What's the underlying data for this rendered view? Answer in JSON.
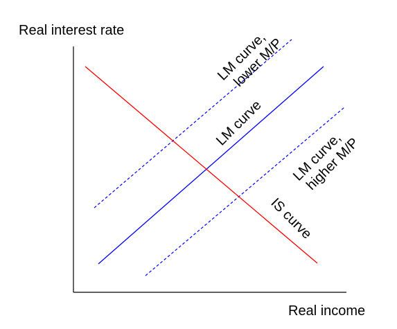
{
  "axes": {
    "y_label": "Real interest rate",
    "x_label": "Real income",
    "color": "#000000"
  },
  "curves": {
    "is": {
      "label": "IS curve",
      "color": "#ff0000",
      "style": "solid"
    },
    "lm": {
      "label": "LM curve",
      "color": "#0000ff",
      "style": "solid"
    },
    "lm_lower": {
      "label_line1": "LM curve,",
      "label_line2": "lower M/P",
      "color": "#0000ff",
      "style": "dashed"
    },
    "lm_higher": {
      "label_line1": "LM curve,",
      "label_line2": "higher M/P",
      "color": "#0000ff",
      "style": "dashed"
    }
  }
}
